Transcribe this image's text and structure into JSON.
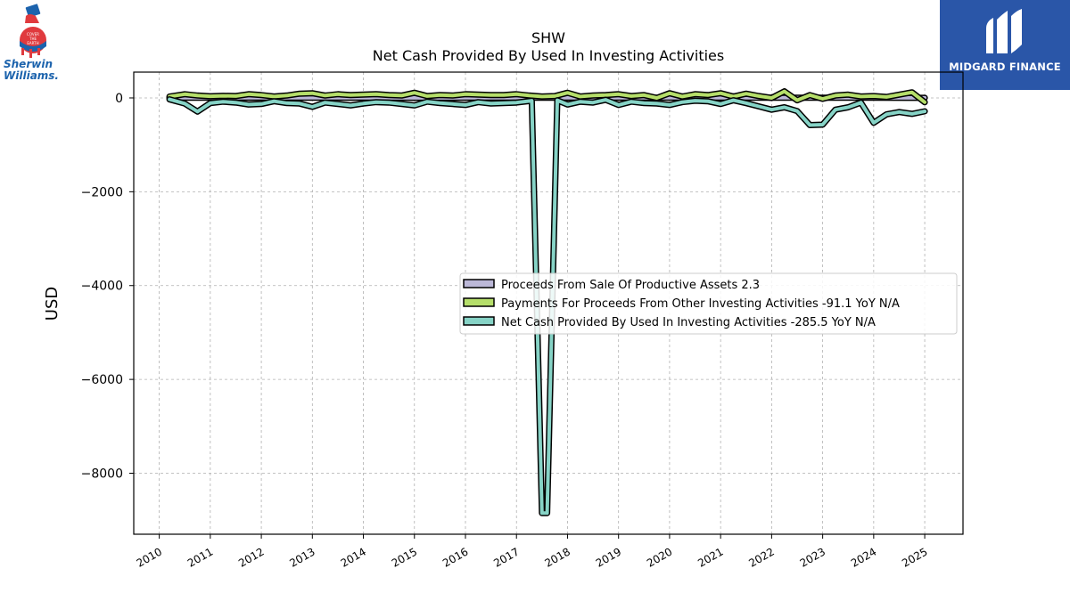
{
  "brand_left": {
    "company_line1": "Sherwin",
    "company_line2": "Williams.",
    "logo_icon": "cover-the-earth-logo-icon",
    "colors": {
      "red": "#e03a3e",
      "blue": "#1c63ad"
    }
  },
  "brand_right": {
    "name": "MIDGARD FINANCE",
    "logo_icon": "midgard-m-logo-icon",
    "bg_color": "#2a56a8"
  },
  "chart_data": {
    "type": "line",
    "title": "SHW",
    "subtitle": "Net Cash Provided By Used In Investing Activities",
    "ylabel": "USD",
    "xlabel": "",
    "ylim": [
      -9300,
      550
    ],
    "xlim": [
      2009.5,
      2025.75
    ],
    "yticks": [
      0,
      -2000,
      -4000,
      -6000,
      -8000
    ],
    "ytick_labels": [
      "0",
      "−2000",
      "−4000",
      "−6000",
      "−8000"
    ],
    "xticks": [
      2010,
      2011,
      2012,
      2013,
      2014,
      2015,
      2016,
      2017,
      2018,
      2019,
      2020,
      2021,
      2022,
      2023,
      2024,
      2025
    ],
    "xtick_labels": [
      "2010",
      "2011",
      "2012",
      "2013",
      "2014",
      "2015",
      "2016",
      "2017",
      "2018",
      "2019",
      "2020",
      "2021",
      "2022",
      "2023",
      "2024",
      "2025"
    ],
    "grid": true,
    "legend_position": "center-right",
    "legend_entries": [
      "Proceeds From Sale Of Productive Assets  2.3",
      "Payments For Proceeds From Other Investing Activities  -91.1 YoY N/A",
      "Net Cash Provided By Used In Investing Activities  -285.5 YoY N/A"
    ],
    "series": [
      {
        "name": "Proceeds From Sale Of Productive Assets",
        "color": "#bcb8d8",
        "x": [
          2010.2,
          2011.0,
          2012.0,
          2013.0,
          2014.0,
          2015.0,
          2016.0,
          2017.0,
          2018.0,
          2019.0,
          2020.0,
          2021.0,
          2022.0,
          2023.0,
          2024.0,
          2025.0
        ],
        "values": [
          5,
          3,
          4,
          3,
          5,
          2,
          4,
          3,
          5,
          3,
          3,
          4,
          5,
          3,
          4,
          2.3
        ]
      },
      {
        "name": "Payments For Proceeds From Other Investing Activities",
        "color": "#b5de6a",
        "x": [
          2010.2,
          2010.5,
          2010.75,
          2011.0,
          2011.25,
          2011.5,
          2011.75,
          2012.0,
          2012.25,
          2012.5,
          2012.75,
          2013.0,
          2013.25,
          2013.5,
          2013.75,
          2014.0,
          2014.25,
          2014.5,
          2014.75,
          2015.0,
          2015.25,
          2015.5,
          2015.75,
          2016.0,
          2016.25,
          2016.5,
          2016.75,
          2017.0,
          2017.25,
          2017.5,
          2017.75,
          2018.0,
          2018.25,
          2018.5,
          2018.75,
          2019.0,
          2019.25,
          2019.5,
          2019.75,
          2020.0,
          2020.25,
          2020.5,
          2020.75,
          2021.0,
          2021.25,
          2021.5,
          2021.75,
          2022.0,
          2022.25,
          2022.5,
          2022.75,
          2023.0,
          2023.25,
          2023.5,
          2023.75,
          2024.0,
          2024.25,
          2024.5,
          2024.75,
          2025.0
        ],
        "values": [
          30,
          80,
          50,
          35,
          45,
          40,
          80,
          60,
          30,
          50,
          90,
          100,
          50,
          80,
          60,
          70,
          80,
          60,
          50,
          110,
          40,
          60,
          50,
          80,
          70,
          60,
          60,
          80,
          50,
          30,
          40,
          110,
          30,
          50,
          60,
          80,
          40,
          60,
          0,
          100,
          30,
          80,
          60,
          100,
          30,
          90,
          40,
          0,
          140,
          -50,
          60,
          -20,
          50,
          70,
          30,
          40,
          20,
          70,
          120,
          -91.1
        ]
      },
      {
        "name": "Net Cash Provided By Used In Investing Activities",
        "color": "#86d3c6",
        "x": [
          2010.2,
          2010.5,
          2010.75,
          2011.0,
          2011.25,
          2011.5,
          2011.75,
          2012.0,
          2012.25,
          2012.5,
          2012.75,
          2013.0,
          2013.25,
          2013.5,
          2013.75,
          2014.0,
          2014.25,
          2014.5,
          2014.75,
          2015.0,
          2015.25,
          2015.5,
          2015.75,
          2016.0,
          2016.25,
          2016.5,
          2016.75,
          2017.0,
          2017.3,
          2017.5,
          2017.6,
          2017.8,
          2018.0,
          2018.25,
          2018.5,
          2018.75,
          2019.0,
          2019.25,
          2019.5,
          2019.75,
          2020.0,
          2020.25,
          2020.5,
          2020.75,
          2021.0,
          2021.25,
          2021.5,
          2021.75,
          2022.0,
          2022.25,
          2022.5,
          2022.75,
          2023.0,
          2023.25,
          2023.5,
          2023.75,
          2024.0,
          2024.25,
          2024.5,
          2024.75,
          2025.0
        ],
        "values": [
          -30,
          -120,
          -290,
          -110,
          -80,
          -100,
          -140,
          -130,
          -70,
          -110,
          -120,
          -190,
          -100,
          -130,
          -160,
          -120,
          -90,
          -100,
          -130,
          -160,
          -80,
          -110,
          -130,
          -150,
          -90,
          -120,
          -110,
          -100,
          -60,
          -8850,
          -8850,
          -50,
          -140,
          -80,
          -100,
          -40,
          -150,
          -80,
          -110,
          -120,
          -150,
          -90,
          -60,
          -70,
          -130,
          -50,
          -110,
          -180,
          -250,
          -200,
          -280,
          -580,
          -570,
          -250,
          -200,
          -100,
          -530,
          -350,
          -300,
          -340,
          -285.5
        ]
      }
    ]
  }
}
